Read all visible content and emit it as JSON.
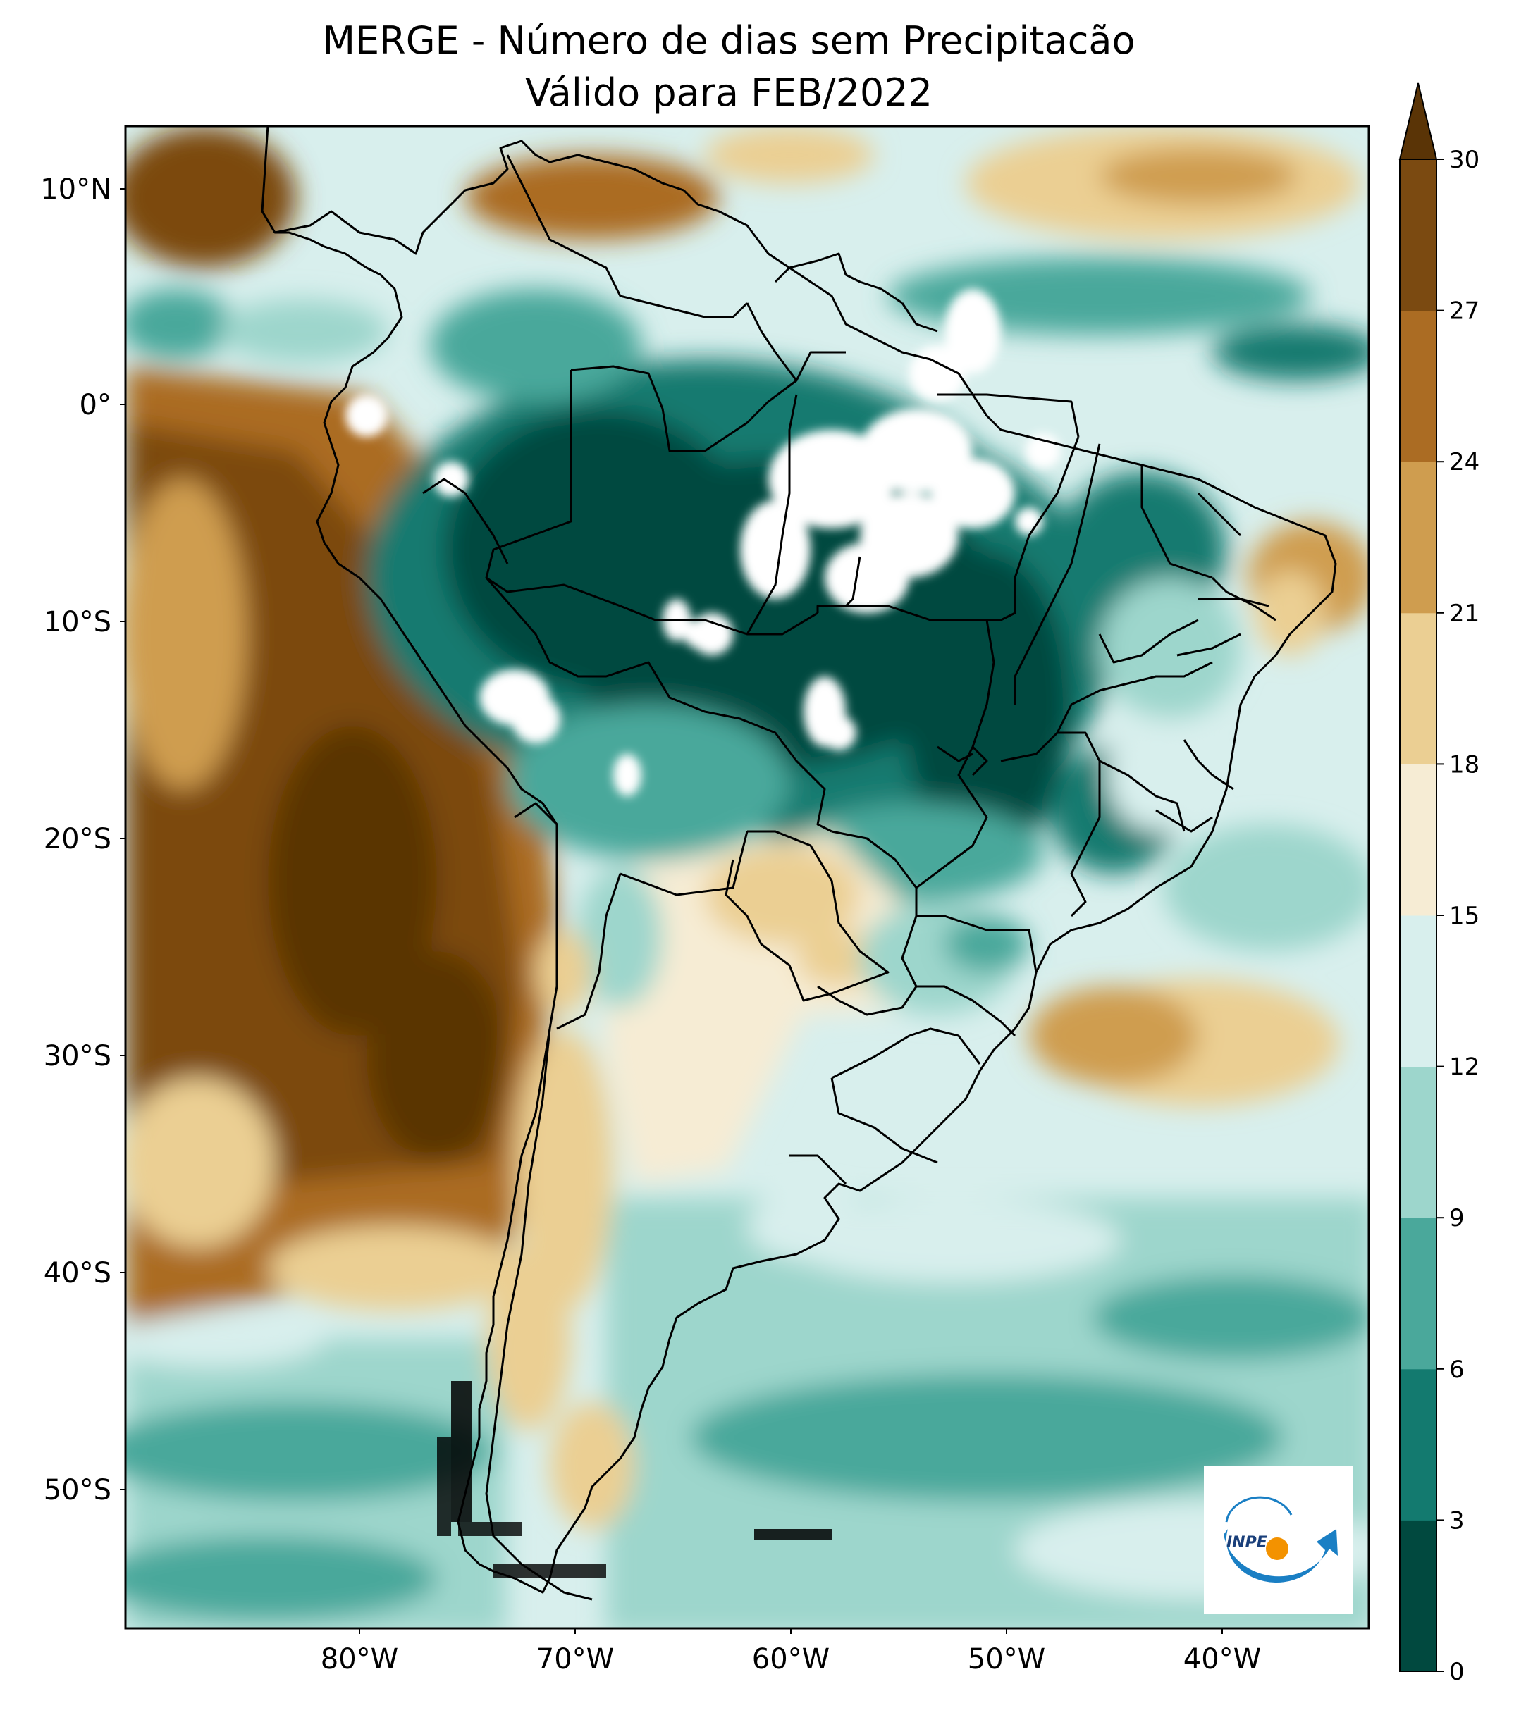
{
  "title": {
    "line1": "MERGE - Número de dias sem Precipitacão",
    "line2": "Válido para FEB/2022"
  },
  "axes": {
    "lat_labels": [
      "10°N",
      "0°",
      "10°S",
      "20°S",
      "30°S",
      "40°S",
      "50°S"
    ],
    "lon_labels": [
      "80°W",
      "70°W",
      "60°W",
      "50°W",
      "40°W"
    ]
  },
  "colorbar": {
    "ticks": [
      "0",
      "3",
      "6",
      "9",
      "12",
      "15",
      "18",
      "21",
      "24",
      "27",
      "30"
    ],
    "colors": [
      "#01493f",
      "#137a6f",
      "#4aa89b",
      "#9dd6cc",
      "#d8efed",
      "#f6ecd4",
      "#ebcf93",
      "#cf9d4f",
      "#ab6c23",
      "#7b4a11"
    ],
    "extend_color": "#5a3406",
    "extend": "max"
  },
  "logo": {
    "text": "INPE",
    "colors": {
      "blue": "#1a7fc4",
      "orange": "#f39200"
    }
  },
  "map": {
    "region": "South America",
    "palette": {
      "ocean_dry": "#9b5e1c",
      "wet": "#13756a",
      "white": "#ffffff"
    }
  }
}
